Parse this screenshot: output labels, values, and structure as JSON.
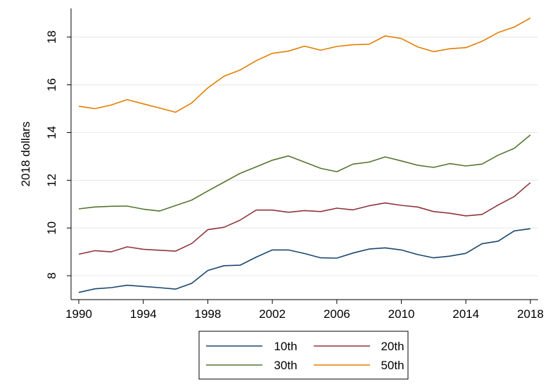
{
  "chart_data": {
    "type": "line",
    "title": "",
    "xlabel": "",
    "ylabel": "2018 dollars",
    "x": [
      1990,
      1991,
      1992,
      1993,
      1994,
      1995,
      1996,
      1997,
      1998,
      1999,
      2000,
      2001,
      2002,
      2003,
      2004,
      2005,
      2006,
      2007,
      2008,
      2009,
      2010,
      2011,
      2012,
      2013,
      2014,
      2015,
      2016,
      2017,
      2018
    ],
    "xticks": [
      "1990",
      "1994",
      "1998",
      "2002",
      "2006",
      "2010",
      "2014",
      "2018"
    ],
    "yticks": [
      "8",
      "10",
      "12",
      "14",
      "16",
      "18"
    ],
    "xlim": [
      1990,
      2018
    ],
    "ylim": [
      7.0,
      19.2
    ],
    "grid": "horizontal",
    "legend_position": "bottom",
    "series": [
      {
        "name": "10th",
        "color": "#1a476f",
        "values": [
          7.3,
          7.45,
          7.5,
          7.6,
          7.55,
          7.5,
          7.44,
          7.68,
          8.22,
          8.42,
          8.44,
          8.78,
          9.08,
          9.08,
          8.93,
          8.75,
          8.74,
          8.95,
          9.12,
          9.17,
          9.08,
          8.89,
          8.75,
          8.82,
          8.94,
          9.34,
          9.45,
          9.88,
          9.97
        ]
      },
      {
        "name": "20th",
        "color": "#90353b",
        "values": [
          8.9,
          9.05,
          9.0,
          9.21,
          9.11,
          9.07,
          9.03,
          9.35,
          9.93,
          10.03,
          10.33,
          10.75,
          10.75,
          10.66,
          10.73,
          10.69,
          10.83,
          10.76,
          10.93,
          11.05,
          10.95,
          10.88,
          10.69,
          10.62,
          10.51,
          10.57,
          10.96,
          11.32,
          11.9
        ]
      },
      {
        "name": "30th",
        "color": "#55752f",
        "values": [
          10.8,
          10.88,
          10.91,
          10.92,
          10.79,
          10.71,
          10.94,
          11.17,
          11.55,
          11.92,
          12.29,
          12.56,
          12.84,
          13.02,
          12.76,
          12.5,
          12.36,
          12.68,
          12.76,
          12.98,
          12.81,
          12.63,
          12.54,
          12.7,
          12.6,
          12.68,
          13.05,
          13.34,
          13.9
        ]
      },
      {
        "name": "50th",
        "color": "#e37e00",
        "values": [
          15.1,
          15.0,
          15.15,
          15.38,
          15.2,
          15.03,
          14.85,
          15.24,
          15.87,
          16.36,
          16.62,
          17.01,
          17.32,
          17.41,
          17.62,
          17.45,
          17.61,
          17.68,
          17.7,
          18.05,
          17.94,
          17.59,
          17.39,
          17.51,
          17.56,
          17.82,
          18.19,
          18.42,
          18.8
        ]
      }
    ]
  }
}
